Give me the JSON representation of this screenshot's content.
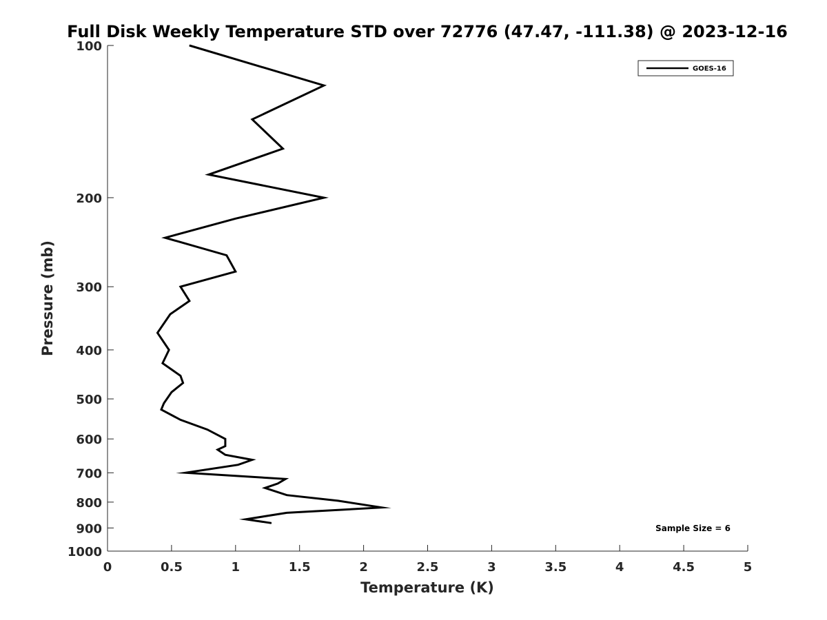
{
  "chart_data": {
    "type": "line",
    "title": "Full Disk Weekly Temperature STD over 72776 (47.47, -111.38) @ 2023-12-16",
    "xlabel": "Temperature (K)",
    "ylabel": "Pressure (mb)",
    "xlim": [
      0,
      5
    ],
    "ylim": [
      100,
      1000
    ],
    "yscale": "log",
    "y_reversed": true,
    "xticks": [
      0,
      0.5,
      1,
      1.5,
      2,
      2.5,
      3,
      3.5,
      4,
      4.5,
      5
    ],
    "xtick_labels": [
      "0",
      "0.5",
      "1",
      "1.5",
      "2",
      "2.5",
      "3",
      "3.5",
      "4",
      "4.5",
      "5"
    ],
    "yticks": [
      100,
      200,
      300,
      400,
      500,
      600,
      700,
      800,
      900,
      1000
    ],
    "ytick_labels": [
      "100",
      "200",
      "300",
      "400",
      "500",
      "600",
      "700",
      "800",
      "900",
      "1000"
    ],
    "grid": false,
    "legend_position": "top-right",
    "series": [
      {
        "name": "GOES-16",
        "color": "#000000",
        "points": [
          {
            "x": 0.64,
            "y": 100
          },
          {
            "x": 1.69,
            "y": 120
          },
          {
            "x": 1.13,
            "y": 140
          },
          {
            "x": 1.37,
            "y": 160
          },
          {
            "x": 0.79,
            "y": 180
          },
          {
            "x": 1.69,
            "y": 200
          },
          {
            "x": 1.0,
            "y": 220
          },
          {
            "x": 0.45,
            "y": 240
          },
          {
            "x": 0.93,
            "y": 260
          },
          {
            "x": 1.0,
            "y": 280
          },
          {
            "x": 0.57,
            "y": 300
          },
          {
            "x": 0.64,
            "y": 320
          },
          {
            "x": 0.49,
            "y": 340
          },
          {
            "x": 0.39,
            "y": 370
          },
          {
            "x": 0.48,
            "y": 400
          },
          {
            "x": 0.43,
            "y": 425
          },
          {
            "x": 0.57,
            "y": 450
          },
          {
            "x": 0.59,
            "y": 465
          },
          {
            "x": 0.5,
            "y": 485
          },
          {
            "x": 0.44,
            "y": 510
          },
          {
            "x": 0.42,
            "y": 525
          },
          {
            "x": 0.57,
            "y": 550
          },
          {
            "x": 0.78,
            "y": 575
          },
          {
            "x": 0.92,
            "y": 600
          },
          {
            "x": 0.92,
            "y": 620
          },
          {
            "x": 0.86,
            "y": 630
          },
          {
            "x": 0.92,
            "y": 645
          },
          {
            "x": 1.13,
            "y": 660
          },
          {
            "x": 1.02,
            "y": 675
          },
          {
            "x": 0.61,
            "y": 700
          },
          {
            "x": 1.39,
            "y": 720
          },
          {
            "x": 1.33,
            "y": 735
          },
          {
            "x": 1.23,
            "y": 750
          },
          {
            "x": 1.4,
            "y": 775
          },
          {
            "x": 1.8,
            "y": 795
          },
          {
            "x": 2.14,
            "y": 820
          },
          {
            "x": 1.4,
            "y": 840
          },
          {
            "x": 1.08,
            "y": 865
          },
          {
            "x": 1.28,
            "y": 880
          }
        ]
      }
    ],
    "annotation": "Sample Size = 6"
  }
}
